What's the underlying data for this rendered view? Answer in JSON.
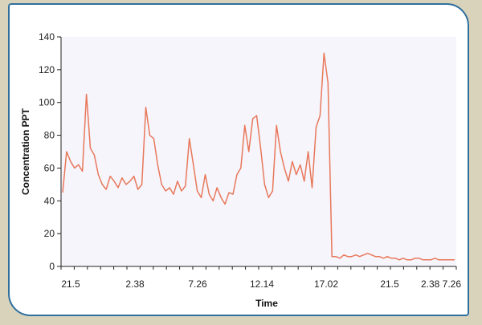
{
  "chart_data": {
    "type": "line",
    "title": "",
    "xlabel": "Time",
    "ylabel": "Concentration PPT",
    "ylim": [
      0,
      140
    ],
    "yticks": [
      0,
      20,
      40,
      60,
      80,
      100,
      120,
      140
    ],
    "xtick_labels": [
      "21.5",
      "2.38",
      "7.26",
      "12.14",
      "17.02",
      "21.5",
      "2.38 7.26"
    ],
    "grid": false,
    "colors": {
      "line": "#e8785a",
      "plot_bg": "#f6f5fc",
      "frame": "#2f6f9e"
    },
    "series": [
      {
        "values": [
          45,
          70,
          64,
          60,
          62,
          58,
          105,
          72,
          68,
          56,
          50,
          47,
          55,
          52,
          48,
          54,
          50,
          52,
          55,
          47,
          50,
          97,
          80,
          78,
          62,
          50,
          46,
          48,
          44,
          52,
          46,
          49,
          78,
          62,
          46,
          42,
          56,
          44,
          40,
          48,
          42,
          38,
          45,
          44,
          56,
          60,
          86,
          70,
          90,
          92,
          72,
          50,
          42,
          46,
          86,
          70,
          60,
          52,
          64,
          56,
          62,
          52,
          70,
          48,
          85,
          92,
          130,
          112,
          6,
          6,
          5,
          7,
          6,
          6,
          7,
          6,
          7,
          8,
          7,
          6,
          6,
          5,
          6,
          5,
          5,
          4,
          5,
          4,
          4,
          5,
          5,
          4,
          4,
          4,
          5,
          4,
          4,
          4,
          4,
          4
        ]
      }
    ]
  }
}
